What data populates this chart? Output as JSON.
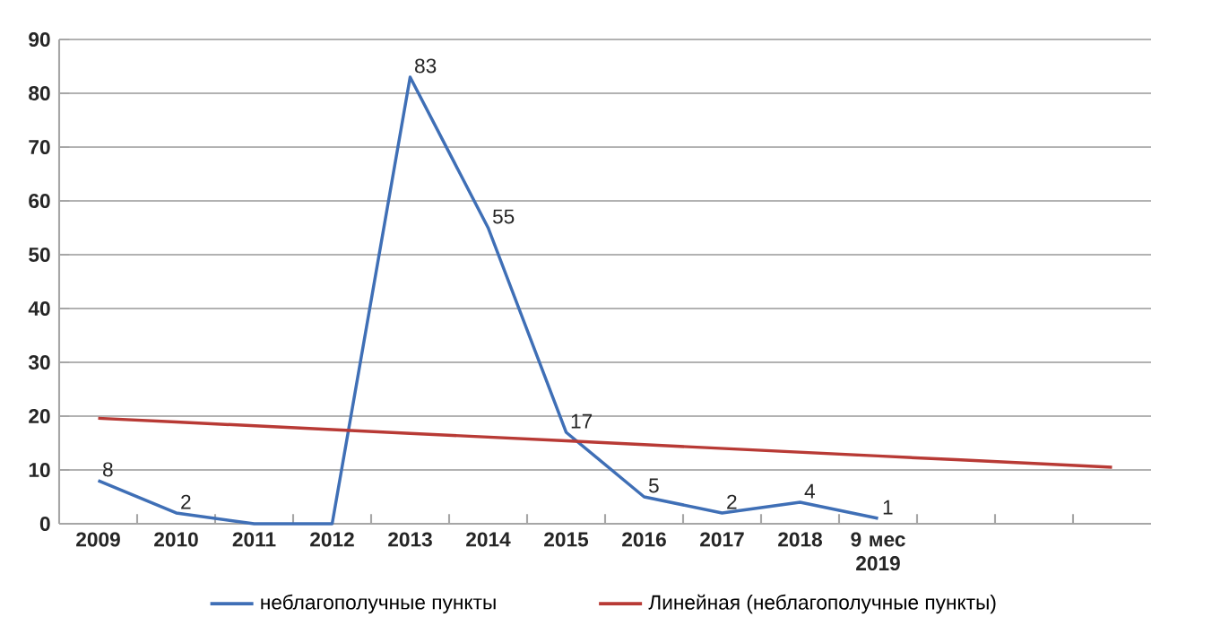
{
  "chart_data": {
    "type": "line",
    "categories": [
      "2009",
      "2010",
      "2011",
      "2012",
      "2013",
      "2014",
      "2015",
      "2016",
      "2017",
      "2018",
      "9 мес 2019",
      null,
      null,
      null
    ],
    "series": [
      {
        "name": "неблагополучные пункты",
        "color": "#3f6fb6",
        "values": [
          8,
          2,
          0,
          0,
          83,
          55,
          17,
          5,
          2,
          4,
          1,
          null,
          null,
          null
        ],
        "value_labels": [
          "8",
          "2",
          null,
          null,
          "83",
          "55",
          "17",
          "5",
          "2",
          "4",
          "1",
          null,
          null,
          null
        ]
      },
      {
        "name": "Линейная (неблагополучные пункты)",
        "color": "#b83a35",
        "values": [
          19.6,
          18.9,
          18.2,
          17.5,
          16.8,
          16.1,
          15.4,
          14.7,
          14.0,
          13.3,
          12.6,
          11.9,
          11.2,
          10.5
        ]
      }
    ],
    "ylim": [
      0,
      90
    ],
    "yticks": [
      0,
      10,
      20,
      30,
      40,
      50,
      60,
      70,
      80,
      90
    ],
    "grid": "y",
    "legend": "bottom",
    "marker": "none",
    "line_style": "solid"
  }
}
